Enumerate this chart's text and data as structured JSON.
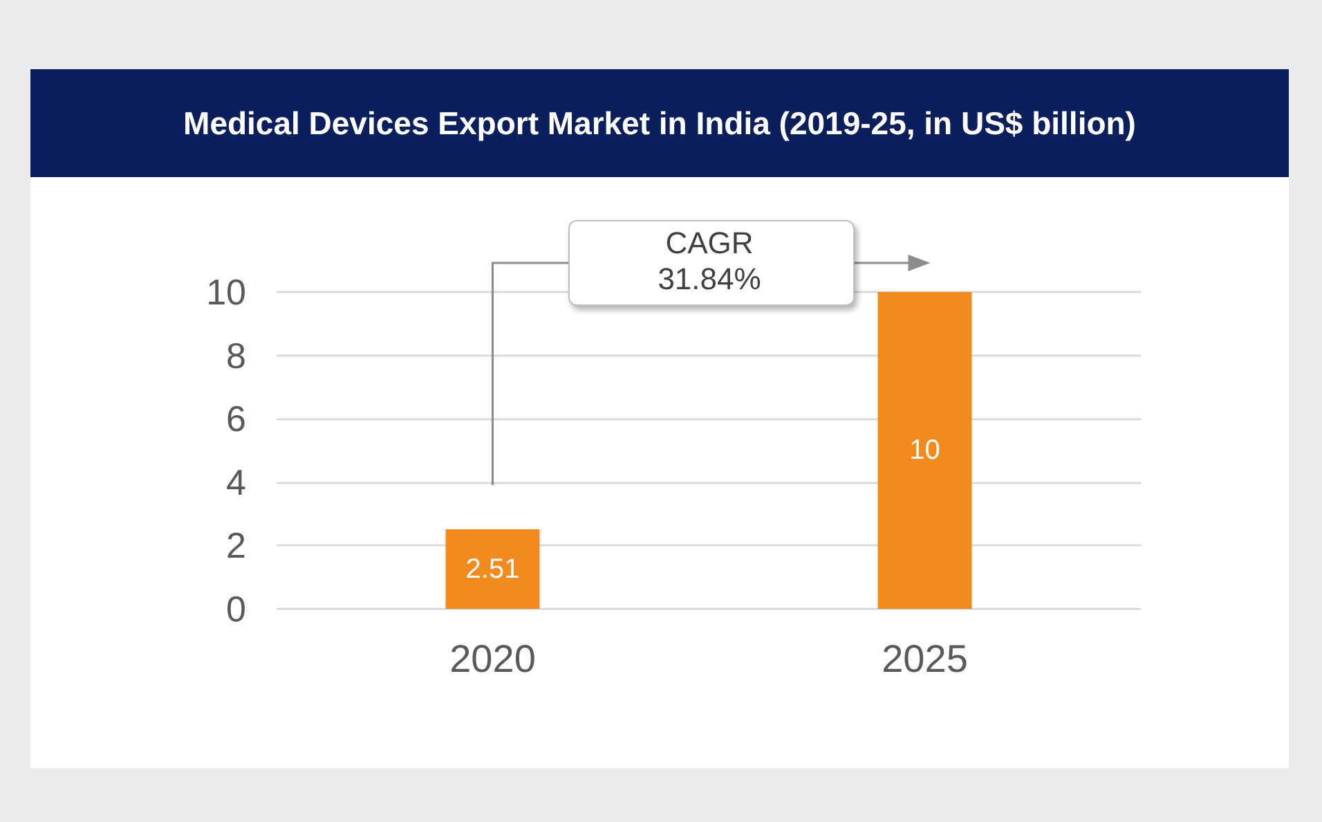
{
  "chart_data": {
    "type": "bar",
    "title": "Medical Devices Export Market in India (2019-25, in US$ billion)",
    "categories": [
      "2020",
      "2025"
    ],
    "values": [
      2.51,
      10
    ],
    "color": "#f28a1e",
    "ylim": [
      0,
      10
    ],
    "yticks": [
      0,
      2,
      4,
      6,
      8,
      10
    ],
    "grid": "y",
    "data_labels": true,
    "annotations": [
      "CAGR\n31.84%"
    ]
  }
}
